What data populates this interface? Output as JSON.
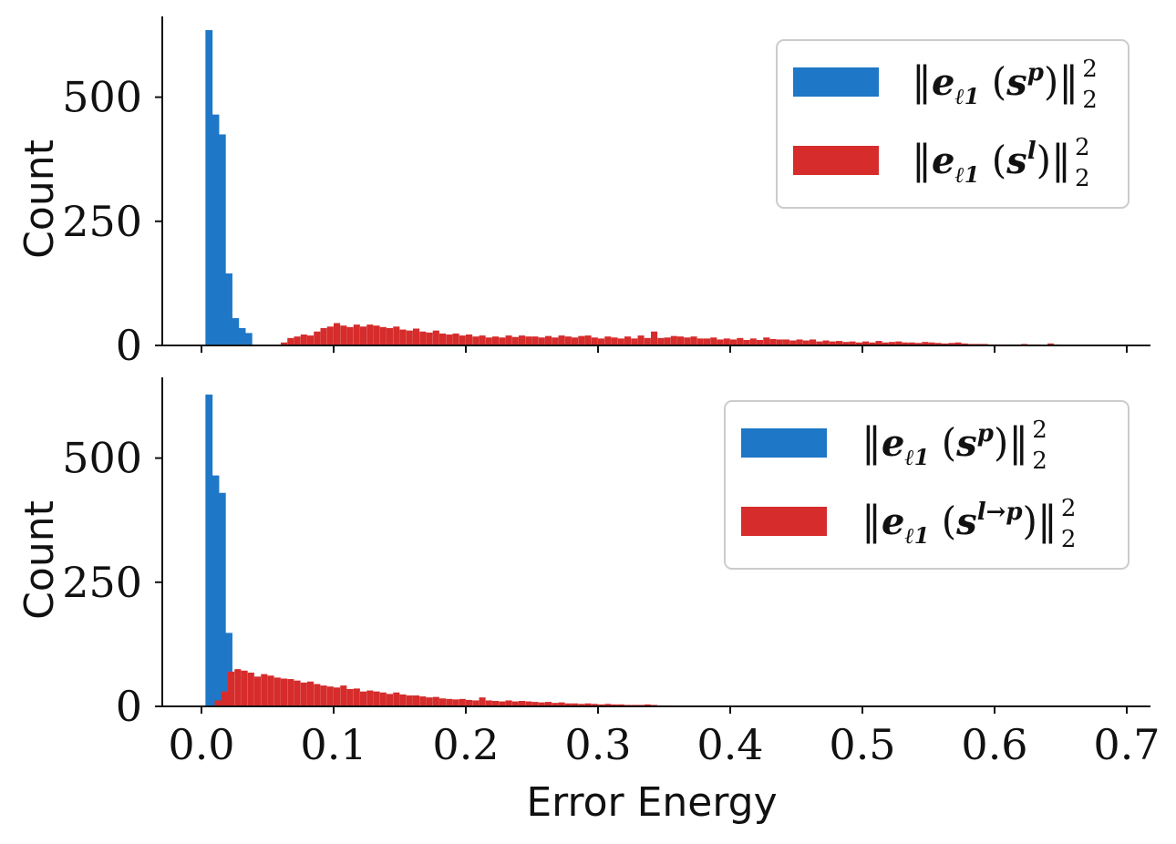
{
  "chart_data": [
    {
      "type": "bar",
      "panel": "top",
      "xlabel": "",
      "ylabel": "Count",
      "xlim": [
        -0.03,
        0.72
      ],
      "ylim": [
        0,
        660
      ],
      "yticks": [
        0,
        250,
        500
      ],
      "ytick_labels": [
        "0",
        "250",
        "500"
      ],
      "xticks": [
        0.0,
        0.1,
        0.2,
        0.3,
        0.4,
        0.5,
        0.6,
        0.7
      ],
      "xtick_labels": [],
      "legend_position": "top-right",
      "series": [
        {
          "name": "||ẽℓ1 (s^p)||²₂",
          "legend_parts": {
            "e": "e",
            "sub": "ℓ1",
            "s": "s",
            "sup": "p"
          },
          "color": "#1f77c7",
          "bin_width": 0.005,
          "bins": [
            [
              0.003,
              635
            ],
            [
              0.008,
              465
            ],
            [
              0.013,
              425
            ],
            [
              0.018,
              145
            ],
            [
              0.023,
              55
            ],
            [
              0.028,
              35
            ],
            [
              0.033,
              25
            ]
          ]
        },
        {
          "name": "||ẽℓ1 (s^l)||²₂",
          "legend_parts": {
            "e": "e",
            "sub": "ℓ1",
            "s": "s",
            "sup": "l"
          },
          "color": "#d62c2c",
          "bin_width": 0.0045,
          "bins": [
            [
              0.06,
              6
            ],
            [
              0.065,
              15
            ],
            [
              0.07,
              18
            ],
            [
              0.075,
              22
            ],
            [
              0.08,
              20
            ],
            [
              0.085,
              28
            ],
            [
              0.09,
              35
            ],
            [
              0.095,
              38
            ],
            [
              0.1,
              45
            ],
            [
              0.105,
              40
            ],
            [
              0.11,
              37
            ],
            [
              0.115,
              42
            ],
            [
              0.12,
              38
            ],
            [
              0.125,
              42
            ],
            [
              0.13,
              40
            ],
            [
              0.135,
              37
            ],
            [
              0.14,
              35
            ],
            [
              0.145,
              38
            ],
            [
              0.15,
              32
            ],
            [
              0.155,
              30
            ],
            [
              0.16,
              34
            ],
            [
              0.165,
              28
            ],
            [
              0.17,
              26
            ],
            [
              0.175,
              30
            ],
            [
              0.18,
              24
            ],
            [
              0.185,
              22
            ],
            [
              0.19,
              24
            ],
            [
              0.195,
              20
            ],
            [
              0.2,
              22
            ],
            [
              0.205,
              18
            ],
            [
              0.21,
              20
            ],
            [
              0.215,
              16
            ],
            [
              0.22,
              18
            ],
            [
              0.225,
              16
            ],
            [
              0.23,
              20
            ],
            [
              0.235,
              17
            ],
            [
              0.24,
              20
            ],
            [
              0.245,
              18
            ],
            [
              0.25,
              18
            ],
            [
              0.255,
              16
            ],
            [
              0.26,
              19
            ],
            [
              0.265,
              16
            ],
            [
              0.27,
              20
            ],
            [
              0.275,
              18
            ],
            [
              0.28,
              16
            ],
            [
              0.285,
              19
            ],
            [
              0.29,
              20
            ],
            [
              0.295,
              16
            ],
            [
              0.3,
              14
            ],
            [
              0.305,
              18
            ],
            [
              0.31,
              16
            ],
            [
              0.315,
              14
            ],
            [
              0.32,
              18
            ],
            [
              0.325,
              14
            ],
            [
              0.33,
              20
            ],
            [
              0.335,
              15
            ],
            [
              0.34,
              28
            ],
            [
              0.345,
              15
            ],
            [
              0.35,
              16
            ],
            [
              0.355,
              19
            ],
            [
              0.36,
              18
            ],
            [
              0.365,
              16
            ],
            [
              0.37,
              18
            ],
            [
              0.375,
              14
            ],
            [
              0.38,
              14
            ],
            [
              0.385,
              16
            ],
            [
              0.39,
              12
            ],
            [
              0.395,
              14
            ],
            [
              0.4,
              12
            ],
            [
              0.405,
              15
            ],
            [
              0.41,
              11
            ],
            [
              0.415,
              14
            ],
            [
              0.42,
              11
            ],
            [
              0.425,
              16
            ],
            [
              0.43,
              13
            ],
            [
              0.435,
              12
            ],
            [
              0.44,
              12
            ],
            [
              0.445,
              10
            ],
            [
              0.45,
              12
            ],
            [
              0.455,
              10
            ],
            [
              0.46,
              12
            ],
            [
              0.465,
              8
            ],
            [
              0.47,
              10
            ],
            [
              0.475,
              8
            ],
            [
              0.48,
              9
            ],
            [
              0.485,
              7
            ],
            [
              0.49,
              8
            ],
            [
              0.495,
              6
            ],
            [
              0.5,
              8
            ],
            [
              0.505,
              6
            ],
            [
              0.51,
              9
            ],
            [
              0.515,
              6
            ],
            [
              0.52,
              7
            ],
            [
              0.525,
              8
            ],
            [
              0.53,
              6
            ],
            [
              0.535,
              6
            ],
            [
              0.54,
              5
            ],
            [
              0.545,
              7
            ],
            [
              0.55,
              6
            ],
            [
              0.555,
              5
            ],
            [
              0.56,
              4
            ],
            [
              0.565,
              5
            ],
            [
              0.57,
              6
            ],
            [
              0.575,
              4
            ],
            [
              0.58,
              3
            ],
            [
              0.585,
              3
            ],
            [
              0.59,
              3
            ],
            [
              0.595,
              2
            ],
            [
              0.6,
              2
            ],
            [
              0.605,
              2
            ],
            [
              0.61,
              2
            ],
            [
              0.615,
              2
            ],
            [
              0.62,
              3
            ],
            [
              0.625,
              2
            ],
            [
              0.63,
              2
            ],
            [
              0.635,
              1
            ],
            [
              0.64,
              4
            ],
            [
              0.645,
              2
            ]
          ]
        }
      ]
    },
    {
      "type": "bar",
      "panel": "bottom",
      "xlabel": "Error Energy",
      "ylabel": "Count",
      "xlim": [
        -0.03,
        0.72
      ],
      "ylim": [
        0,
        660
      ],
      "yticks": [
        0,
        250,
        500
      ],
      "ytick_labels": [
        "0",
        "250",
        "500"
      ],
      "xticks": [
        0.0,
        0.1,
        0.2,
        0.3,
        0.4,
        0.5,
        0.6,
        0.7
      ],
      "xtick_labels": [
        "0.0",
        "0.1",
        "0.2",
        "0.3",
        "0.4",
        "0.5",
        "0.6",
        "0.7"
      ],
      "legend_position": "top-right",
      "series": [
        {
          "name": "||ẽℓ1 (s^p)||²₂",
          "legend_parts": {
            "e": "e",
            "sub": "ℓ1",
            "s": "s",
            "sup": "p"
          },
          "color": "#1f77c7",
          "bin_width": 0.005,
          "bins": [
            [
              0.003,
              628
            ],
            [
              0.008,
              465
            ],
            [
              0.013,
              430
            ],
            [
              0.018,
              148
            ]
          ]
        },
        {
          "name": "||ẽℓ1 (s^l→p)||²₂",
          "legend_parts": {
            "e": "e",
            "sub": "ℓ1",
            "s": "s",
            "sup": "l→p"
          },
          "color": "#d62c2c",
          "bin_width": 0.0045,
          "bins": [
            [
              0.01,
              12
            ],
            [
              0.015,
              30
            ],
            [
              0.02,
              70
            ],
            [
              0.025,
              75
            ],
            [
              0.03,
              72
            ],
            [
              0.035,
              68
            ],
            [
              0.04,
              60
            ],
            [
              0.045,
              65
            ],
            [
              0.05,
              62
            ],
            [
              0.055,
              58
            ],
            [
              0.06,
              56
            ],
            [
              0.065,
              55
            ],
            [
              0.07,
              52
            ],
            [
              0.075,
              48
            ],
            [
              0.08,
              50
            ],
            [
              0.085,
              45
            ],
            [
              0.09,
              42
            ],
            [
              0.095,
              40
            ],
            [
              0.1,
              38
            ],
            [
              0.105,
              42
            ],
            [
              0.11,
              35
            ],
            [
              0.115,
              36
            ],
            [
              0.12,
              30
            ],
            [
              0.125,
              32
            ],
            [
              0.13,
              30
            ],
            [
              0.135,
              28
            ],
            [
              0.14,
              25
            ],
            [
              0.145,
              28
            ],
            [
              0.15,
              24
            ],
            [
              0.155,
              22
            ],
            [
              0.16,
              22
            ],
            [
              0.165,
              20
            ],
            [
              0.17,
              18
            ],
            [
              0.175,
              19
            ],
            [
              0.18,
              16
            ],
            [
              0.185,
              15
            ],
            [
              0.19,
              14
            ],
            [
              0.195,
              15
            ],
            [
              0.2,
              13
            ],
            [
              0.205,
              12
            ],
            [
              0.21,
              18
            ],
            [
              0.215,
              12
            ],
            [
              0.22,
              11
            ],
            [
              0.225,
              10
            ],
            [
              0.23,
              12
            ],
            [
              0.235,
              10
            ],
            [
              0.24,
              11
            ],
            [
              0.245,
              10
            ],
            [
              0.25,
              9
            ],
            [
              0.255,
              8
            ],
            [
              0.26,
              9
            ],
            [
              0.265,
              7
            ],
            [
              0.27,
              8
            ],
            [
              0.275,
              6
            ],
            [
              0.28,
              6
            ],
            [
              0.285,
              5
            ],
            [
              0.29,
              6
            ],
            [
              0.295,
              5
            ],
            [
              0.3,
              4
            ],
            [
              0.305,
              5
            ],
            [
              0.31,
              4
            ],
            [
              0.315,
              4
            ],
            [
              0.32,
              3
            ],
            [
              0.325,
              3
            ],
            [
              0.33,
              3
            ],
            [
              0.335,
              4
            ],
            [
              0.34,
              3
            ],
            [
              0.345,
              2
            ],
            [
              0.35,
              2
            ],
            [
              0.355,
              1
            ]
          ]
        }
      ]
    }
  ]
}
